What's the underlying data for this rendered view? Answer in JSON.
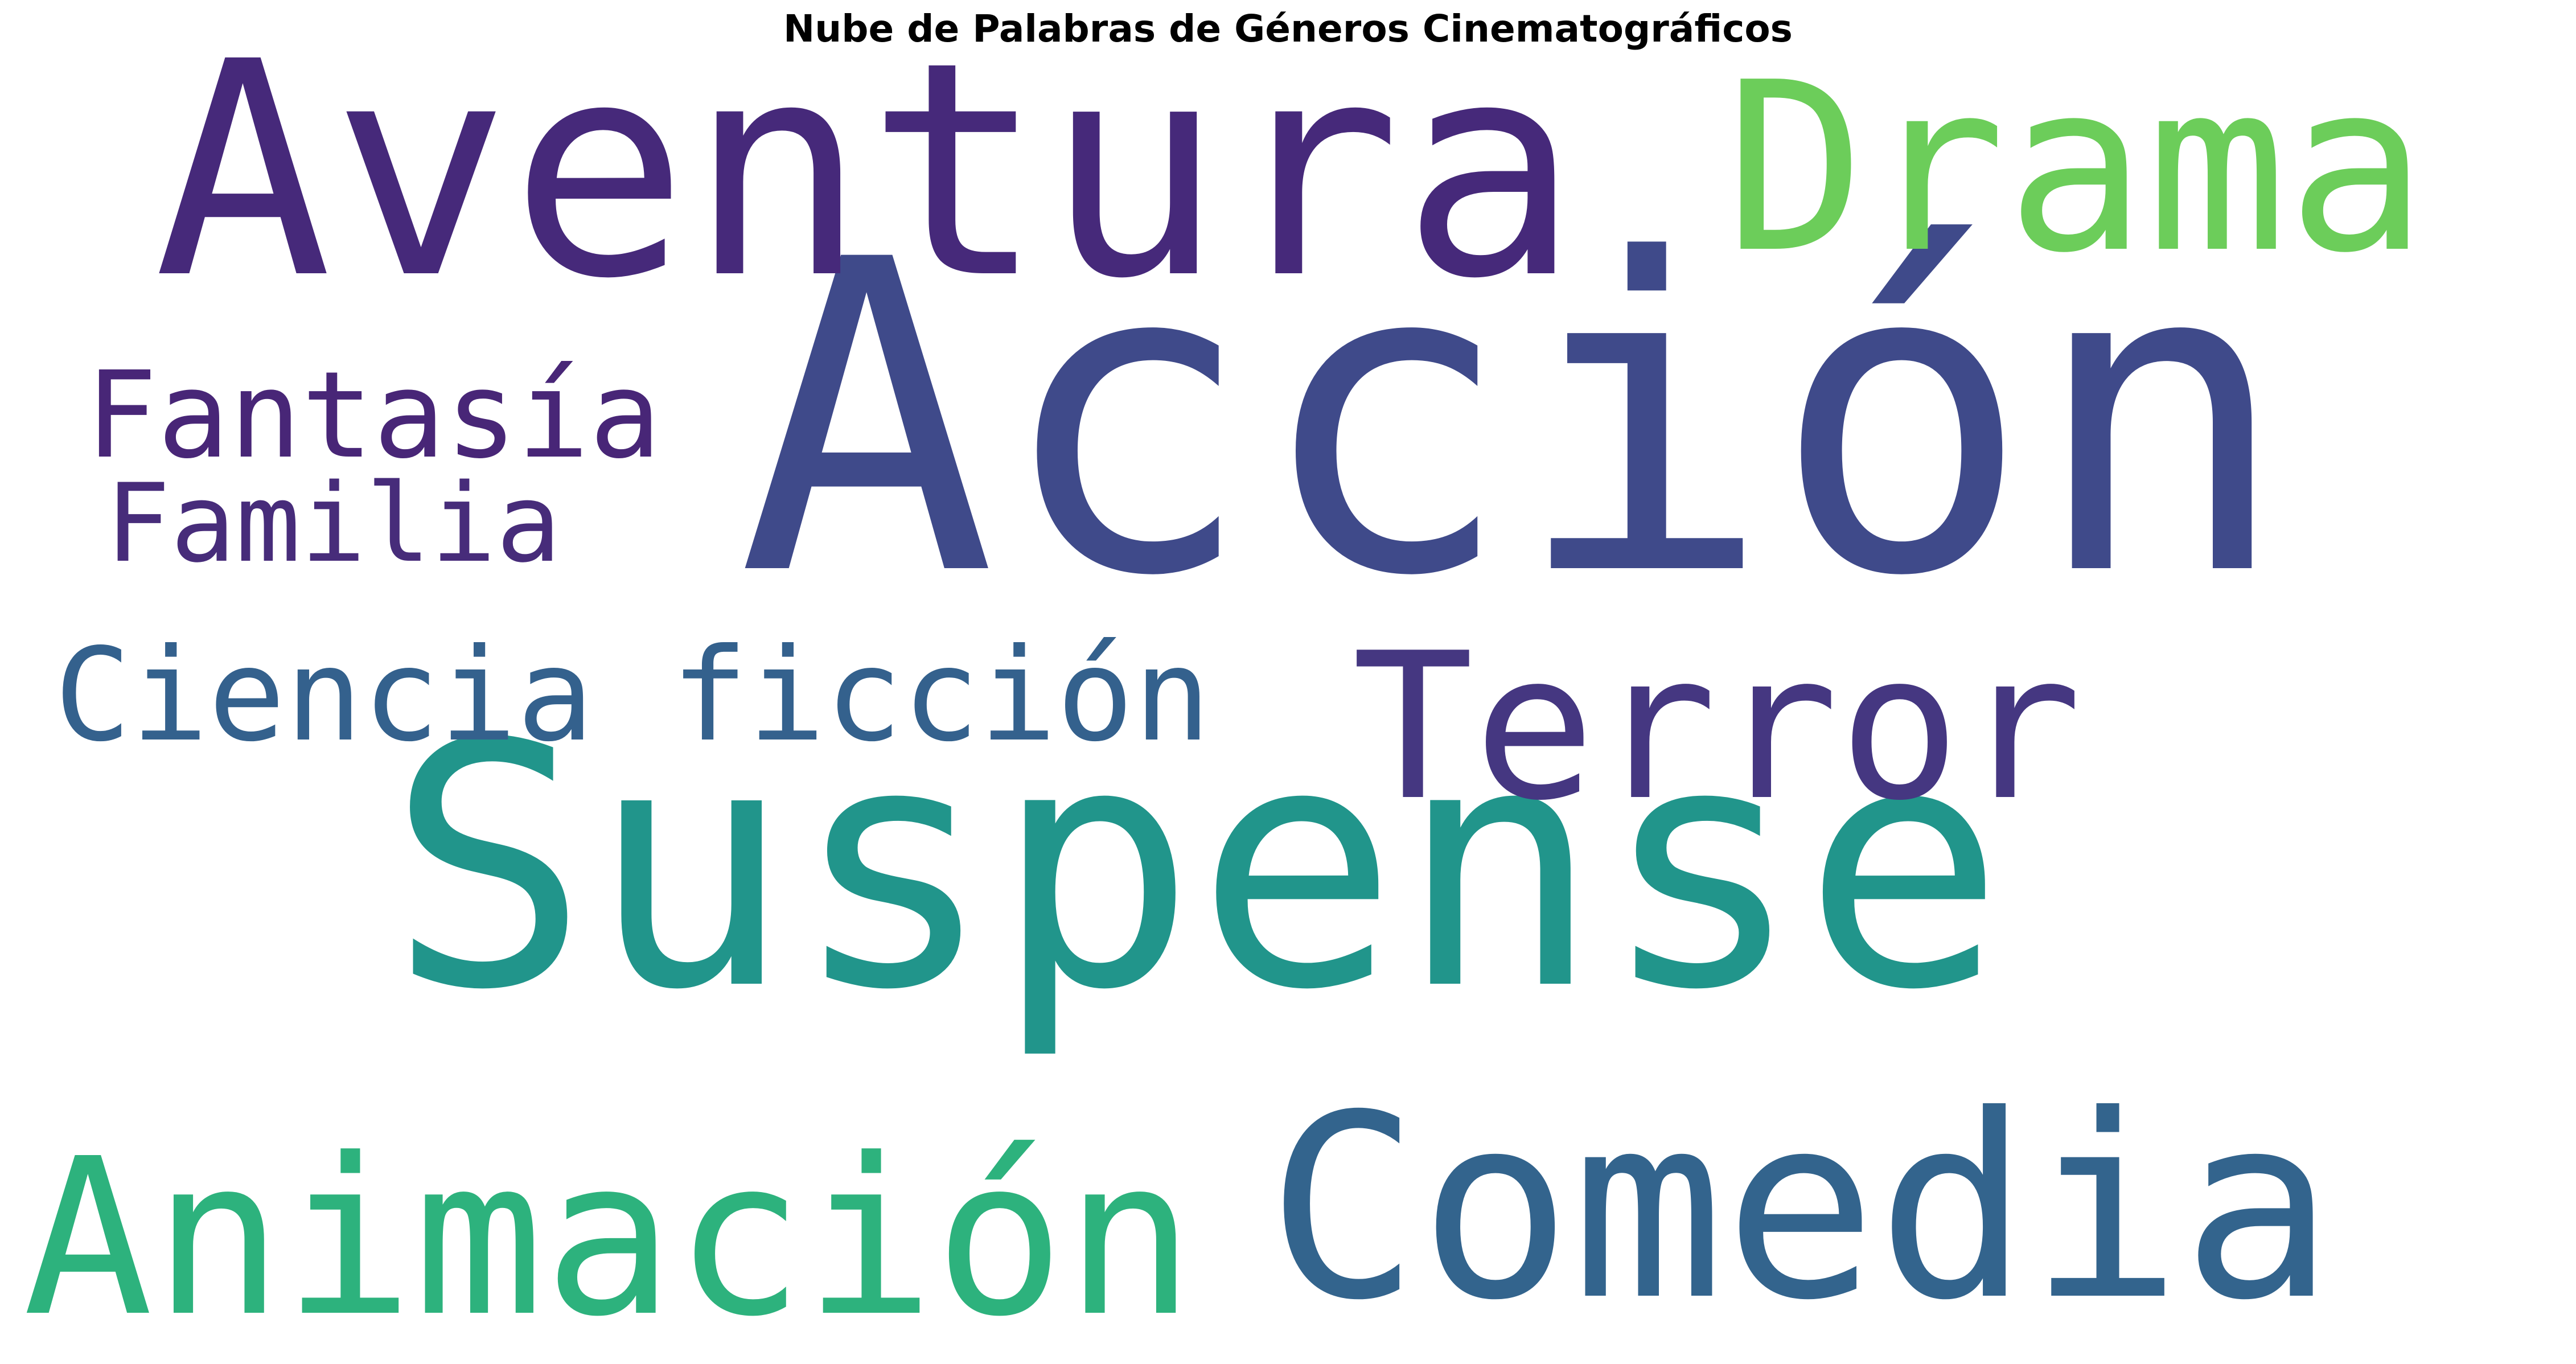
{
  "title": "Nube de Palabras de Géneros Cinematográficos",
  "words": [
    {
      "text": "Acción",
      "color": "#3f4a8a"
    },
    {
      "text": "Suspense",
      "color": "#21958b"
    },
    {
      "text": "Aventura",
      "color": "#46297a"
    },
    {
      "text": "Drama",
      "color": "#6ccd5a"
    },
    {
      "text": "Comedia",
      "color": "#33648d"
    },
    {
      "text": "Animación",
      "color": "#2db27d"
    },
    {
      "text": "Terror",
      "color": "#453781"
    },
    {
      "text": "Ciencia ficción",
      "color": "#34618d"
    },
    {
      "text": "Fantasía",
      "color": "#482677"
    },
    {
      "text": "Familia",
      "color": "#472c7a"
    }
  ]
}
